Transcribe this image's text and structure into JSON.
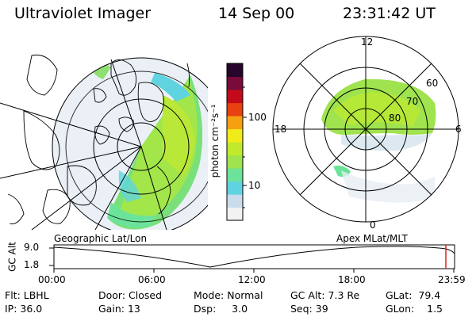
{
  "header": {
    "instrument": "Ultraviolet Imager",
    "date": "14 Sep 00",
    "time": "23:31:42 UT"
  },
  "left_panel": {
    "caption": "Geographic Lat/Lon"
  },
  "right_panel": {
    "caption": "Apex  MLat/MLT",
    "mlt_labels": [
      "12",
      "18",
      "6",
      "0"
    ],
    "lat_labels": [
      "60",
      "70",
      "80"
    ]
  },
  "colorbar": {
    "unit_label": "photon cm⁻²s⁻¹",
    "tick_labels": [
      "100",
      "10"
    ],
    "colors": [
      "#f2f2f2",
      "#c8dcec",
      "#5fd4e0",
      "#6ce39a",
      "#9fe34e",
      "#c2ea2c",
      "#f0ec1a",
      "#f5a010",
      "#e84010",
      "#c40a1a",
      "#7a0a3a",
      "#26062a"
    ]
  },
  "altitude_plot": {
    "ylabel": "GC Alt",
    "yticks": [
      "9.0",
      "1.8"
    ],
    "xticks": [
      "00:00",
      "06:00",
      "12:00",
      "18:00",
      "23:59"
    ]
  },
  "info": {
    "row1": [
      {
        "label": "Flt:",
        "value": "LBHL"
      },
      {
        "label": "Door:",
        "value": "Closed"
      },
      {
        "label": "Mode:",
        "value": "Normal"
      },
      {
        "label": "GC Alt:",
        "value": "7.3 Re"
      },
      {
        "label": "GLat:",
        "value": "79.4"
      }
    ],
    "row2": [
      {
        "label": "IP:",
        "value": "36.0"
      },
      {
        "label": "Gain:",
        "value": "13"
      },
      {
        "label": "Dsp:",
        "value": "3.0"
      },
      {
        "label": "Seq:",
        "value": "39"
      },
      {
        "label": "GLon:",
        "value": "1.5"
      }
    ]
  }
}
